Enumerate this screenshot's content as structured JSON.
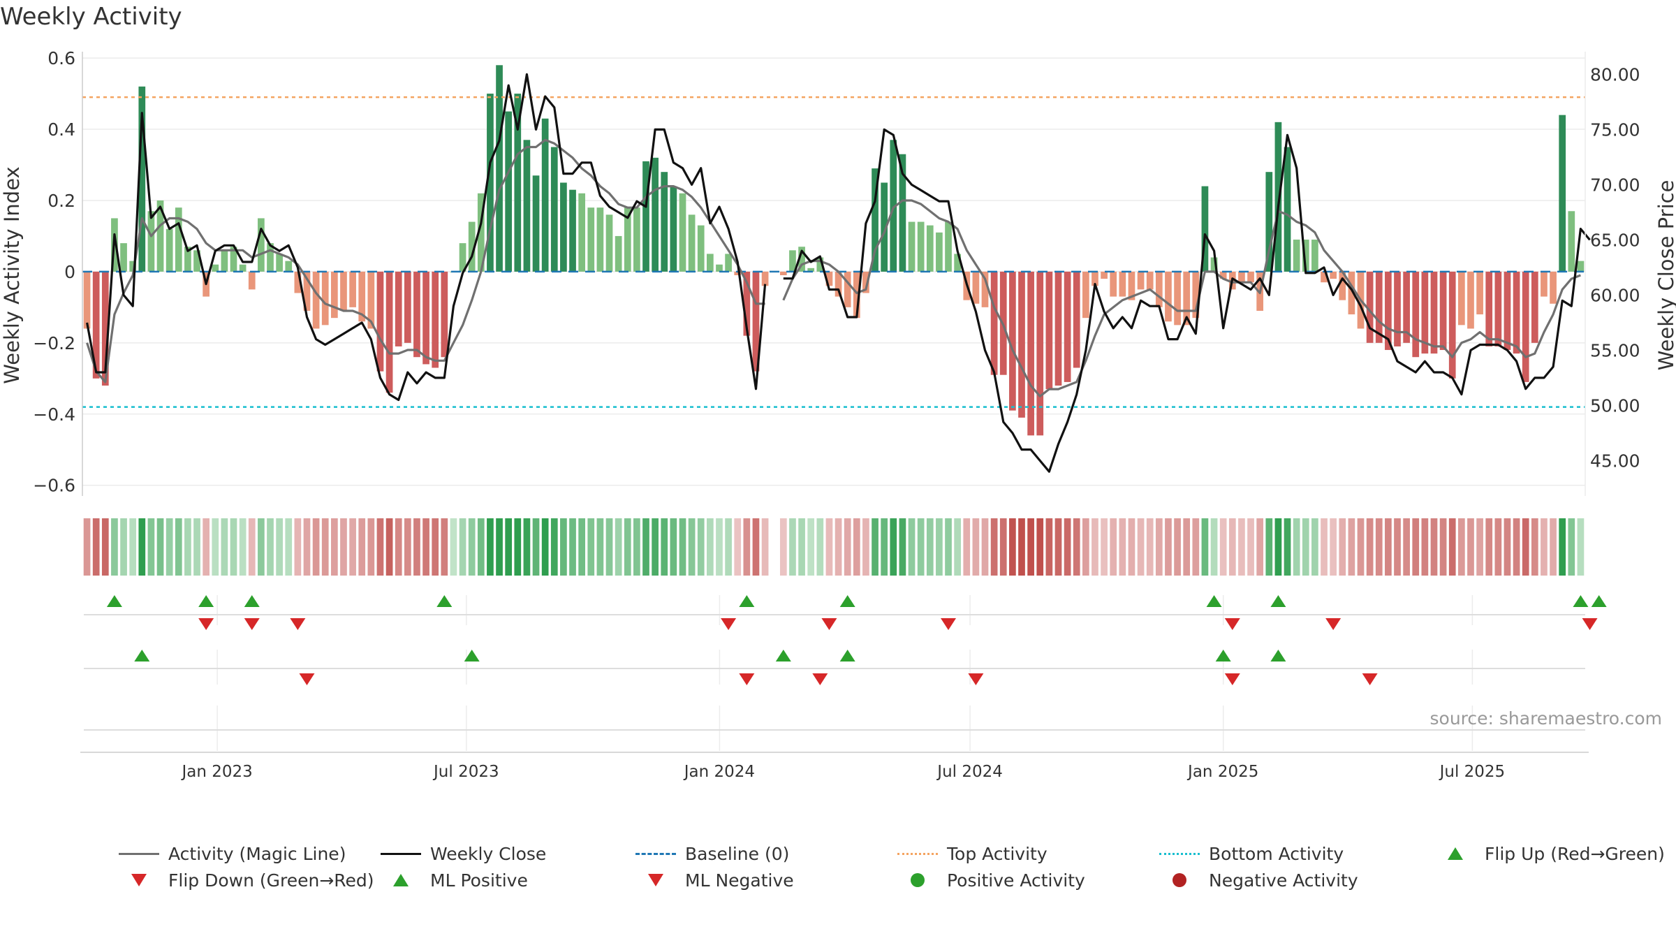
{
  "title": "Weekly Activity",
  "source": "source: sharemaestro.com",
  "colors": {
    "strong_green": "#2e8b57",
    "light_green": "#7fbf7f",
    "strong_red": "#cd5c5c",
    "light_red": "#e9967a",
    "magic_line": "#707070",
    "close_line": "#111111",
    "baseline": "#1f77b4",
    "top": "#f4a460",
    "bottom": "#17becf",
    "flip_up": "#2ca02c",
    "flip_down": "#d62728"
  },
  "chart_data": {
    "type": "bar",
    "title": "Weekly Activity",
    "ylabel": "Weekly Activity Index",
    "y2label": "Weekly Close Price",
    "ylim": [
      -0.63,
      0.61
    ],
    "y2lim": [
      41.8,
      81.8
    ],
    "yticks": [
      0.6,
      0.4,
      0.2,
      0,
      -0.2,
      -0.4,
      -0.6
    ],
    "ytick_labels": [
      "0.6",
      "0.4",
      "0.2",
      "0",
      "−0.2",
      "−0.4",
      "−0.6"
    ],
    "y2ticks": [
      80,
      75,
      70,
      65,
      60,
      55,
      50,
      45
    ],
    "y2tick_labels": [
      "80.00",
      "75.00",
      "70.00",
      "65.00",
      "60.00",
      "55.00",
      "50.00",
      "45.00"
    ],
    "x_start": "2022-09-25",
    "x_end": "2025-09-21",
    "xticks": [
      {
        "date": "2023-01-01",
        "label": "Jan 2023"
      },
      {
        "date": "2023-07-01",
        "label": "Jul 2023"
      },
      {
        "date": "2024-01-01",
        "label": "Jan 2024"
      },
      {
        "date": "2024-07-01",
        "label": "Jul 2024"
      },
      {
        "date": "2025-01-01",
        "label": "Jan 2025"
      },
      {
        "date": "2025-07-01",
        "label": "Jul 2025"
      }
    ],
    "activity": [
      -0.16,
      -0.3,
      -0.32,
      0.15,
      0.08,
      0.03,
      0.52,
      0.17,
      0.2,
      0.12,
      0.18,
      0.07,
      0.06,
      -0.07,
      0.02,
      0.06,
      0.07,
      0.02,
      -0.05,
      0.15,
      0.08,
      0.05,
      0.03,
      -0.06,
      -0.11,
      -0.16,
      -0.15,
      -0.13,
      -0.11,
      -0.1,
      -0.14,
      -0.16,
      -0.28,
      -0.34,
      -0.21,
      -0.2,
      -0.24,
      -0.26,
      -0.27,
      -0.24,
      0.0,
      0.08,
      0.14,
      0.22,
      0.5,
      0.58,
      0.45,
      0.5,
      0.37,
      0.27,
      0.43,
      0.35,
      0.25,
      0.23,
      0.22,
      0.18,
      0.18,
      0.16,
      0.1,
      0.18,
      0.18,
      0.31,
      0.32,
      0.28,
      0.24,
      0.22,
      0.16,
      0.13,
      0.05,
      0.02,
      0.05,
      -0.01,
      -0.18,
      -0.28,
      -0.04,
      null,
      -0.01,
      0.06,
      0.07,
      0.01,
      0.04,
      -0.04,
      -0.07,
      -0.1,
      -0.13,
      -0.06,
      0.29,
      0.25,
      0.37,
      0.33,
      0.14,
      0.14,
      0.13,
      0.11,
      0.14,
      0.05,
      -0.08,
      -0.09,
      -0.1,
      -0.29,
      -0.29,
      -0.39,
      -0.41,
      -0.46,
      -0.46,
      -0.33,
      -0.32,
      -0.31,
      -0.27,
      -0.13,
      -0.04,
      -0.02,
      -0.07,
      -0.07,
      -0.08,
      -0.05,
      -0.05,
      -0.1,
      -0.14,
      -0.15,
      -0.15,
      -0.13,
      0.24,
      0.04,
      -0.02,
      -0.05,
      -0.03,
      -0.03,
      -0.11,
      0.28,
      0.42,
      0.35,
      0.09,
      0.09,
      0.09,
      -0.03,
      -0.02,
      -0.08,
      -0.12,
      -0.16,
      -0.2,
      -0.2,
      -0.22,
      -0.21,
      -0.2,
      -0.24,
      -0.23,
      -0.23,
      -0.22,
      -0.3,
      -0.15,
      -0.16,
      -0.12,
      -0.21,
      -0.21,
      -0.22,
      -0.23,
      -0.31,
      -0.2,
      -0.07,
      -0.09,
      0.44,
      0.17,
      0.03
    ],
    "magic_line": [
      -0.2,
      -0.28,
      -0.31,
      -0.12,
      -0.06,
      -0.01,
      0.15,
      0.1,
      0.13,
      0.15,
      0.15,
      0.14,
      0.12,
      0.08,
      0.06,
      0.06,
      0.06,
      0.06,
      0.04,
      0.05,
      0.06,
      0.05,
      0.04,
      0.02,
      -0.02,
      -0.06,
      -0.09,
      -0.1,
      -0.11,
      -0.11,
      -0.12,
      -0.14,
      -0.19,
      -0.23,
      -0.23,
      -0.22,
      -0.22,
      -0.24,
      -0.25,
      -0.25,
      -0.2,
      -0.15,
      -0.08,
      0.0,
      0.12,
      0.23,
      0.28,
      0.33,
      0.35,
      0.35,
      0.37,
      0.36,
      0.34,
      0.32,
      0.29,
      0.27,
      0.24,
      0.22,
      0.19,
      0.18,
      0.18,
      0.21,
      0.23,
      0.24,
      0.24,
      0.23,
      0.21,
      0.18,
      0.14,
      0.1,
      0.06,
      0.02,
      -0.03,
      -0.09,
      -0.09,
      null,
      -0.08,
      -0.02,
      0.02,
      0.03,
      0.03,
      0.02,
      0.0,
      -0.03,
      -0.06,
      -0.05,
      0.06,
      0.11,
      0.18,
      0.2,
      0.2,
      0.19,
      0.17,
      0.15,
      0.14,
      0.12,
      0.06,
      0.02,
      -0.02,
      -0.1,
      -0.15,
      -0.22,
      -0.27,
      -0.32,
      -0.35,
      -0.33,
      -0.33,
      -0.32,
      -0.31,
      -0.25,
      -0.18,
      -0.12,
      -0.1,
      -0.08,
      -0.07,
      -0.06,
      -0.05,
      -0.07,
      -0.09,
      -0.11,
      -0.11,
      -0.11,
      0.0,
      0.0,
      -0.02,
      -0.03,
      -0.03,
      -0.03,
      -0.06,
      0.06,
      0.17,
      0.16,
      0.14,
      0.13,
      0.11,
      0.06,
      0.03,
      0.0,
      -0.04,
      -0.08,
      -0.11,
      -0.14,
      -0.16,
      -0.17,
      -0.17,
      -0.19,
      -0.2,
      -0.21,
      -0.21,
      -0.24,
      -0.2,
      -0.19,
      -0.17,
      -0.19,
      -0.19,
      -0.2,
      -0.21,
      -0.24,
      -0.23,
      -0.17,
      -0.12,
      -0.05,
      -0.02,
      -0.01
    ],
    "weekly_close": [
      57.5,
      53.0,
      53.0,
      65.5,
      60.0,
      59.0,
      76.5,
      67.0,
      68.0,
      66.0,
      66.5,
      64.0,
      64.5,
      61.0,
      64.0,
      64.5,
      64.5,
      63.0,
      63.0,
      66.0,
      64.5,
      64.0,
      64.5,
      62.5,
      58.0,
      56.0,
      55.5,
      56.0,
      56.5,
      57.0,
      57.5,
      56.0,
      52.5,
      51.0,
      50.5,
      53.0,
      52.0,
      53.0,
      52.5,
      52.5,
      59.0,
      62.0,
      63.5,
      66.5,
      72.0,
      74.0,
      79.0,
      75.0,
      80.0,
      75.0,
      78.0,
      77.0,
      71.0,
      71.0,
      72.0,
      72.0,
      69.0,
      68.0,
      67.5,
      67.0,
      68.5,
      68.0,
      75.0,
      75.0,
      72.0,
      71.5,
      70.0,
      71.5,
      66.5,
      68.0,
      66.0,
      63.0,
      57.0,
      51.5,
      61.0,
      null,
      61.5,
      61.5,
      64.0,
      63.0,
      63.5,
      60.5,
      60.5,
      58.0,
      58.0,
      66.5,
      68.5,
      75.0,
      74.5,
      71.0,
      70.0,
      69.5,
      69.0,
      68.5,
      68.5,
      64.0,
      61.0,
      58.5,
      55.0,
      53.0,
      48.5,
      47.5,
      46.0,
      46.0,
      45.0,
      44.0,
      46.5,
      48.5,
      51.0,
      55.0,
      61.0,
      58.5,
      57.0,
      58.0,
      57.0,
      59.5,
      59.0,
      59.0,
      56.0,
      56.0,
      58.0,
      56.5,
      65.5,
      64.0,
      57.0,
      61.5,
      61.0,
      60.5,
      61.5,
      60.0,
      68.0,
      74.5,
      71.5,
      62.0,
      62.0,
      62.5,
      60.0,
      61.5,
      60.5,
      59.0,
      57.0,
      56.5,
      56.0,
      54.0,
      53.5,
      53.0,
      54.0,
      53.0,
      53.0,
      52.5,
      51.0,
      55.0,
      55.5,
      55.5,
      55.5,
      55.0,
      54.0,
      51.5,
      52.5,
      52.5,
      53.5,
      59.5,
      59.0,
      66.0,
      65.0
    ],
    "baseline": 0,
    "top_activity": 0.49,
    "bottom_activity": -0.38,
    "series": [
      {
        "name": "Activity (Magic Line)"
      },
      {
        "name": "Weekly Close"
      },
      {
        "name": "Baseline (0)"
      },
      {
        "name": "Top Activity"
      },
      {
        "name": "Bottom Activity"
      },
      {
        "name": "Flip Up (Red→Green)"
      },
      {
        "name": "Flip Down (Green→Red)"
      },
      {
        "name": "ML Positive"
      },
      {
        "name": "ML Negative"
      },
      {
        "name": "Positive Activity"
      },
      {
        "name": "Negative Activity"
      }
    ],
    "flip_up_weeks": [
      3,
      13,
      18,
      39,
      72,
      83,
      123,
      130,
      163,
      165
    ],
    "flip_down_weeks": [
      13,
      18,
      23,
      70,
      81,
      94,
      125,
      136,
      164
    ],
    "ml_positive_weeks": [
      6,
      42,
      76,
      83,
      124,
      130
    ],
    "ml_negative_weeks": [
      24,
      72,
      80,
      97,
      125,
      140
    ],
    "legend": [
      {
        "label": "Activity (Magic Line)",
        "symbol": "line",
        "color": "#707070"
      },
      {
        "label": "Weekly Close",
        "symbol": "line",
        "color": "#111111"
      },
      {
        "label": "Baseline (0)",
        "symbol": "dash",
        "color": "#1f77b4"
      },
      {
        "label": "Top Activity",
        "symbol": "dot",
        "color": "#f4a460"
      },
      {
        "label": "Bottom Activity",
        "symbol": "dot",
        "color": "#17becf"
      },
      {
        "label": "Flip Up (Red→Green)",
        "symbol": "tri-up",
        "color": "#2ca02c"
      },
      {
        "label": "Flip Down (Green→Red)",
        "symbol": "tri-down",
        "color": "#d62728"
      },
      {
        "label": "ML Positive",
        "symbol": "tri-up",
        "color": "#2ca02c"
      },
      {
        "label": "ML Negative",
        "symbol": "tri-down",
        "color": "#d62728"
      },
      {
        "label": "Positive Activity",
        "symbol": "circle",
        "color": "#2ca02c"
      },
      {
        "label": "Negative Activity",
        "symbol": "circle",
        "color": "#b22222"
      }
    ]
  }
}
